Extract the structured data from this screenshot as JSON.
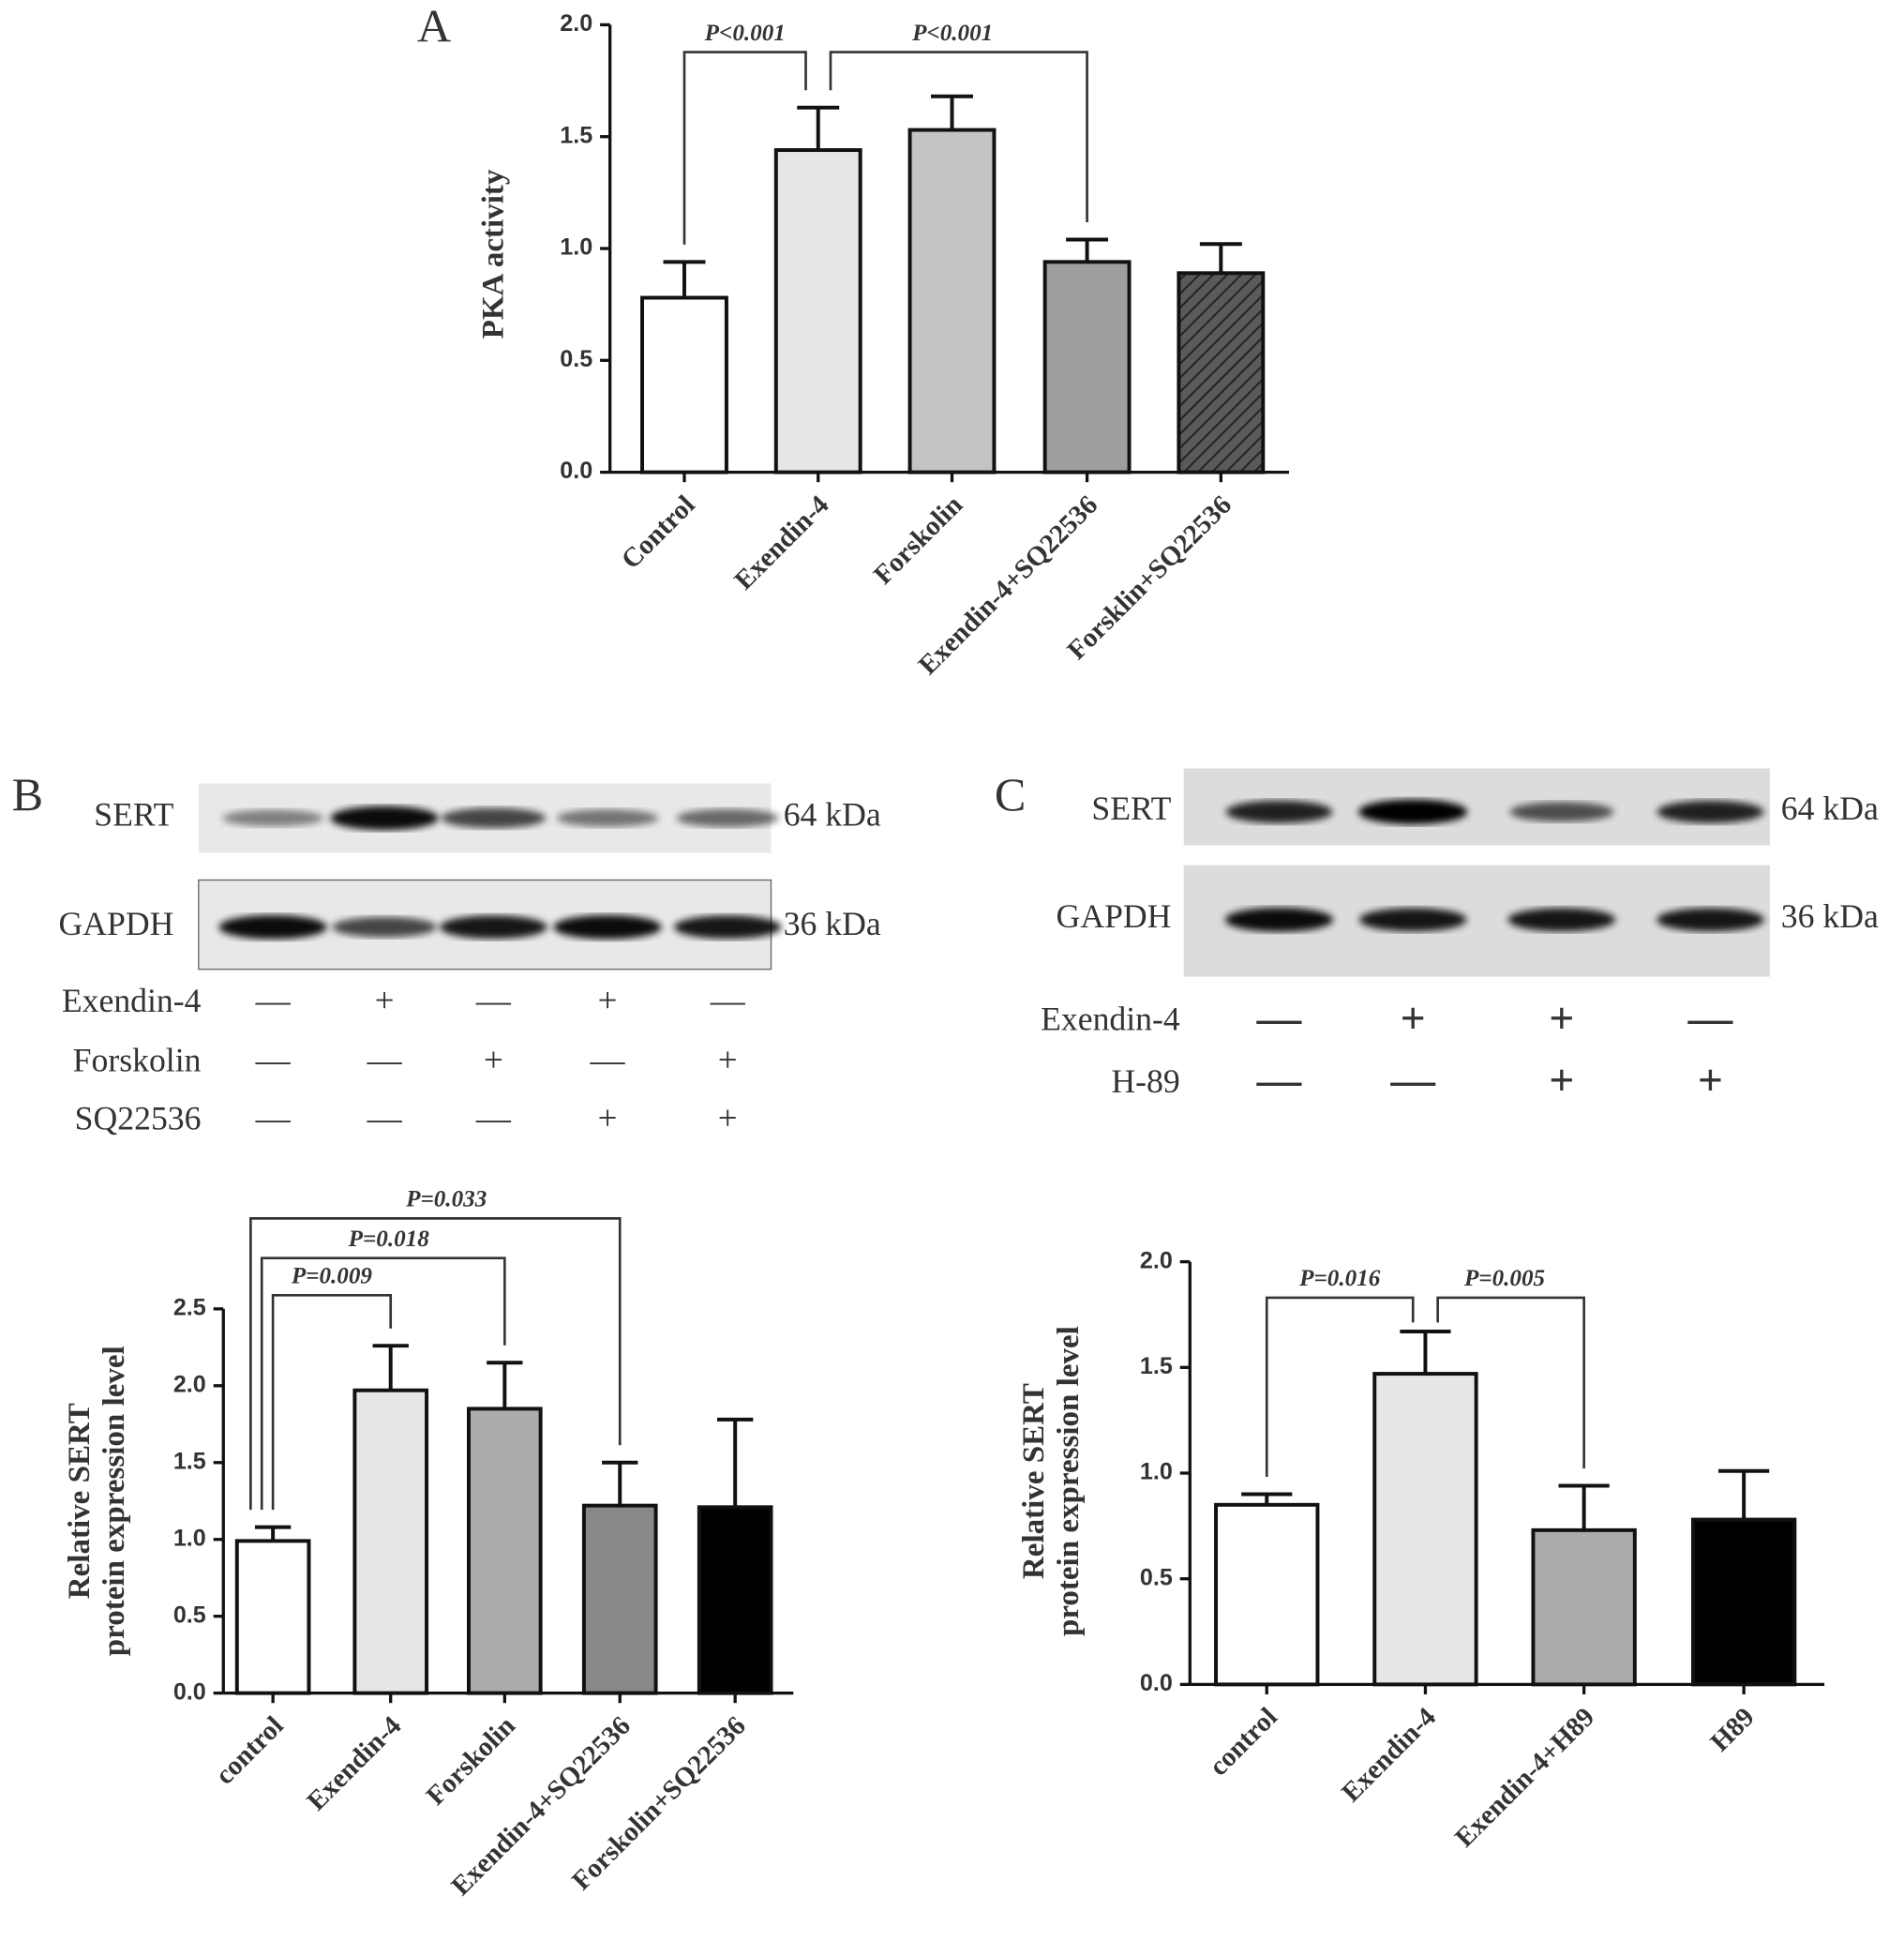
{
  "chart_data": [
    {
      "type": "bar",
      "panel": "A",
      "ylabel": [
        "PKA activity"
      ],
      "categories": [
        "Control",
        "Exendin-4",
        "Forskolin",
        "Exendin-4+SQ22536",
        "Forsklin+SQ22536"
      ],
      "values": [
        0.78,
        1.44,
        1.53,
        0.94,
        0.89
      ],
      "errors": [
        0.16,
        0.19,
        0.15,
        0.1,
        0.13
      ],
      "colors": [
        "#ffffff",
        "#e6e6e6",
        "#c4c4c4",
        "#9e9e9e",
        "#5a5a5a"
      ],
      "hatches": [
        false,
        false,
        false,
        false,
        true
      ],
      "ylim": [
        0,
        2
      ],
      "yticks": [
        {
          "value": 0,
          "label": "0.0"
        },
        {
          "value": 0.5,
          "label": "0.5"
        },
        {
          "value": 1,
          "label": "1.0"
        },
        {
          "value": 1.5,
          "label": "1.5"
        },
        {
          "value": 2,
          "label": "2.0"
        }
      ],
      "annotations": [
        {
          "text": "P<0.001",
          "from": 0,
          "to": 1
        },
        {
          "text": "P<0.001",
          "from": 1,
          "to": 3
        }
      ]
    },
    {
      "type": "bar",
      "panel": "B",
      "ylabel": [
        "Relative SERT",
        "protein expression level"
      ],
      "categories": [
        "control",
        "Exendin-4",
        "Forskolin",
        "Exendin-4+SQ22536",
        "Forskolin+SQ22536"
      ],
      "values": [
        0.99,
        1.97,
        1.85,
        1.22,
        1.21
      ],
      "errors": [
        0.09,
        0.29,
        0.3,
        0.28,
        0.57
      ],
      "colors": [
        "#ffffff",
        "#e6e6e6",
        "#ababab",
        "#888888",
        "#000000"
      ],
      "hatches": [
        false,
        false,
        false,
        false,
        false
      ],
      "ylim": [
        0,
        2.5
      ],
      "yticks": [
        {
          "value": 0,
          "label": "0.0"
        },
        {
          "value": 0.5,
          "label": "0.5"
        },
        {
          "value": 1,
          "label": "1.0"
        },
        {
          "value": 1.5,
          "label": "1.5"
        },
        {
          "value": 2,
          "label": "2.0"
        },
        {
          "value": 2.5,
          "label": "2.5"
        }
      ],
      "annotations": [
        {
          "text": "P=0.009",
          "from": 0,
          "to": 1
        },
        {
          "text": "P=0.018",
          "from": 0,
          "to": 2
        },
        {
          "text": "P=0.033",
          "from": 0,
          "to": 3
        }
      ]
    },
    {
      "type": "bar",
      "panel": "C",
      "ylabel": [
        "Relative SERT",
        "protein expression level"
      ],
      "categories": [
        "control",
        "Exendin-4",
        "Exendin-4+H89",
        "H89"
      ],
      "values": [
        0.85,
        1.47,
        0.73,
        0.78
      ],
      "errors": [
        0.05,
        0.2,
        0.21,
        0.23
      ],
      "colors": [
        "#ffffff",
        "#e6e6e6",
        "#ababab",
        "#000000"
      ],
      "hatches": [
        false,
        false,
        false,
        false
      ],
      "ylim": [
        0,
        2
      ],
      "yticks": [
        {
          "value": 0,
          "label": "0.0"
        },
        {
          "value": 0.5,
          "label": "0.5"
        },
        {
          "value": 1,
          "label": "1.0"
        },
        {
          "value": 1.5,
          "label": "1.5"
        },
        {
          "value": 2,
          "label": "2.0"
        }
      ],
      "annotations": [
        {
          "text": "P=0.016",
          "from": 0,
          "to": 1
        },
        {
          "text": "P=0.005",
          "from": 1,
          "to": 2
        }
      ]
    }
  ],
  "blots": [
    {
      "panel": "B",
      "rows": [
        {
          "protein": "SERT",
          "size": "64 kDa"
        },
        {
          "protein": "GAPDH",
          "size": "36 kDa"
        }
      ],
      "treatments": [
        {
          "name": "Exendin-4",
          "signs": [
            "—",
            "+",
            "—",
            "+",
            "—"
          ]
        },
        {
          "name": "Forskolin",
          "signs": [
            "—",
            "—",
            "+",
            "—",
            "+"
          ]
        },
        {
          "name": "SQ22536",
          "signs": [
            "—",
            "—",
            "—",
            "+",
            "+"
          ]
        }
      ]
    },
    {
      "panel": "C",
      "rows": [
        {
          "protein": "SERT",
          "size": "64 kDa"
        },
        {
          "protein": "GAPDH",
          "size": "36 kDa"
        }
      ],
      "treatments": [
        {
          "name": "Exendin-4",
          "signs": [
            "—",
            "+",
            "+",
            "—"
          ]
        },
        {
          "name": "H-89",
          "signs": [
            "—",
            "—",
            "+",
            "+"
          ]
        }
      ]
    }
  ]
}
